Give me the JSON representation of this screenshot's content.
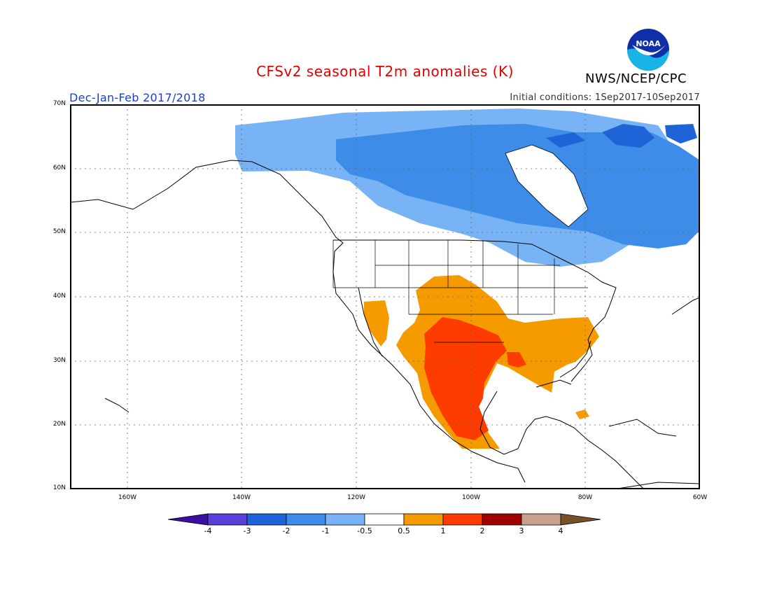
{
  "title": "CFSv2 seasonal T2m anomalies (K)",
  "agency": "NWS/NCEP/CPC",
  "logo_text": "NOAA",
  "season": "Dec-Jan-Feb 2017/2018",
  "initial_conditions": "Initial conditions: 1Sep2017-10Sep2017",
  "map": {
    "lon_range": [
      -170,
      -60
    ],
    "lat_range": [
      10,
      70
    ],
    "lat_labels": [
      "10N",
      "20N",
      "30N",
      "40N",
      "50N",
      "60N",
      "70N"
    ],
    "lon_labels": [
      "160W",
      "140W",
      "120W",
      "100W",
      "80W",
      "60W"
    ]
  },
  "legend": {
    "labels": [
      "-4",
      "-3",
      "-2",
      "-1",
      "-0.5",
      "0.5",
      "1",
      "2",
      "3",
      "4"
    ],
    "colors": [
      "#3b0fa0",
      "#5a3fd8",
      "#1e64d8",
      "#3c8ce8",
      "#78b4f5",
      "#ffffff",
      "#f59b00",
      "#ff3c00",
      "#a00000",
      "#c8a08c",
      "#785028"
    ]
  }
}
